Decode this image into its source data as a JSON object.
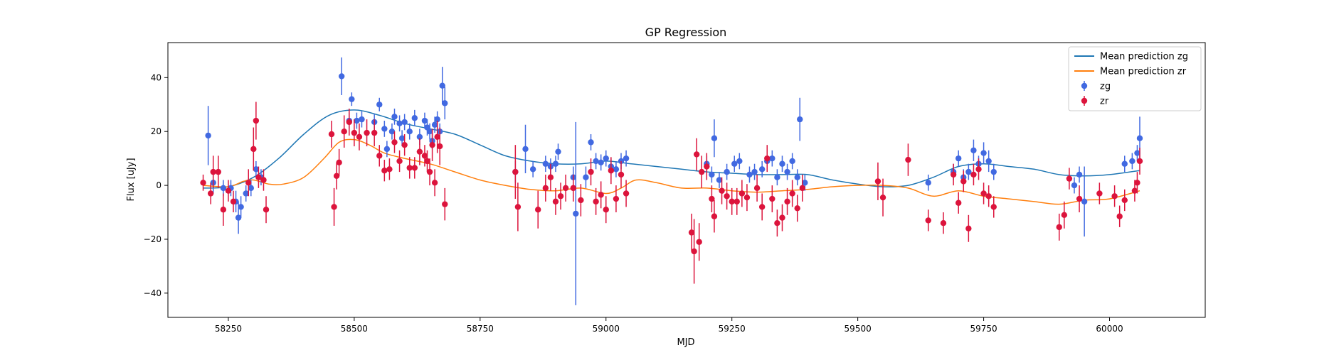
{
  "chart_data": {
    "type": "scatter",
    "title": "GP Regression",
    "xlabel": "MJD",
    "ylabel": "Flux [uJy]",
    "xlim": [
      58130,
      60190
    ],
    "ylim": [
      -49,
      53
    ],
    "xticks": [
      58250,
      58500,
      58750,
      59000,
      59250,
      59500,
      59750,
      60000
    ],
    "yticks": [
      -40,
      -20,
      0,
      20,
      40
    ],
    "grid": false,
    "legend_position": "top-right",
    "legend": [
      {
        "label": "Mean prediction zg",
        "kind": "line",
        "color": "#1f77b4"
      },
      {
        "label": "Mean prediction zr",
        "kind": "line",
        "color": "#ff7f0e"
      },
      {
        "label": "zg",
        "kind": "errorbar",
        "color": "#4169e1"
      },
      {
        "label": "zr",
        "kind": "errorbar",
        "color": "#dc143c"
      }
    ],
    "lines": [
      {
        "name": "Mean prediction zg",
        "color": "#1f77b4",
        "x": [
          58200,
          58250,
          58300,
          58350,
          58400,
          58450,
          58500,
          58550,
          58600,
          58650,
          58700,
          58750,
          58800,
          58850,
          58900,
          58950,
          59000,
          59050,
          59100,
          59150,
          59200,
          59250,
          59300,
          59350,
          59400,
          59450,
          59500,
          59550,
          59600,
          59650,
          59700,
          59750,
          59800,
          59850,
          59900,
          59950,
          60000,
          60060
        ],
        "y": [
          -1,
          -0.5,
          3,
          10,
          19,
          26,
          28,
          26,
          23,
          21,
          19,
          15,
          11,
          9,
          8,
          8,
          9,
          8,
          7,
          6,
          5,
          4.5,
          4,
          4,
          4,
          2,
          0.5,
          -0.5,
          0,
          3,
          7,
          8,
          7,
          6,
          4,
          3.5,
          4,
          5.5
        ]
      },
      {
        "name": "Mean prediction zr",
        "color": "#ff7f0e",
        "x": [
          58200,
          58250,
          58280,
          58300,
          58330,
          58360,
          58400,
          58440,
          58470,
          58500,
          58530,
          58560,
          58600,
          58650,
          58700,
          58750,
          58800,
          58850,
          58900,
          58950,
          59000,
          59030,
          59060,
          59100,
          59150,
          59200,
          59250,
          59300,
          59350,
          59400,
          59450,
          59500,
          59550,
          59600,
          59650,
          59700,
          59750,
          59800,
          59850,
          59900,
          59950,
          60000,
          60060
        ],
        "y": [
          0,
          -0.5,
          1.5,
          2,
          0.5,
          0.5,
          3,
          10,
          16,
          17,
          15,
          12,
          10,
          8,
          5,
          2,
          0,
          -1.5,
          -2,
          -1,
          -3,
          -1,
          2,
          1,
          -1,
          -1,
          -2,
          -2.5,
          -2,
          -1.5,
          -0.5,
          0,
          0,
          -1,
          -4,
          -2,
          -4,
          -5,
          -6,
          -7,
          -5.5,
          -5,
          -2
        ]
      }
    ],
    "series": [
      {
        "name": "zg",
        "color": "#4169e1",
        "points": [
          [
            58210,
            18.5,
            11
          ],
          [
            58220,
            1,
            4
          ],
          [
            58240,
            -1,
            3
          ],
          [
            58255,
            -1,
            3
          ],
          [
            58265,
            -6,
            4
          ],
          [
            58270,
            -12,
            6
          ],
          [
            58275,
            -8,
            4
          ],
          [
            58285,
            -3,
            3
          ],
          [
            58295,
            -1,
            3
          ],
          [
            58305,
            6,
            3
          ],
          [
            58315,
            3,
            3
          ],
          [
            58475,
            40.5,
            7
          ],
          [
            58490,
            24,
            3
          ],
          [
            58495,
            32,
            2.5
          ],
          [
            58505,
            24,
            3
          ],
          [
            58515,
            24.5,
            3
          ],
          [
            58540,
            23.5,
            3
          ],
          [
            58550,
            30,
            2.5
          ],
          [
            58560,
            21,
            3
          ],
          [
            58565,
            13.5,
            3
          ],
          [
            58575,
            20,
            3
          ],
          [
            58580,
            25.5,
            3
          ],
          [
            58590,
            23,
            3
          ],
          [
            58595,
            17.5,
            3
          ],
          [
            58600,
            23.5,
            3
          ],
          [
            58610,
            20,
            3
          ],
          [
            58620,
            25,
            3
          ],
          [
            58630,
            18,
            3
          ],
          [
            58640,
            24,
            3
          ],
          [
            58645,
            21.5,
            3
          ],
          [
            58650,
            20,
            3
          ],
          [
            58655,
            16.5,
            3
          ],
          [
            58660,
            22.5,
            3
          ],
          [
            58665,
            24.5,
            3
          ],
          [
            58670,
            20,
            3
          ],
          [
            58675,
            37,
            7
          ],
          [
            58680,
            30.5,
            6
          ],
          [
            58820,
            5,
            4
          ],
          [
            58840,
            13.5,
            9
          ],
          [
            58855,
            6,
            3
          ],
          [
            58880,
            8,
            3
          ],
          [
            58890,
            7,
            3
          ],
          [
            58900,
            8,
            3
          ],
          [
            58905,
            12.5,
            3
          ],
          [
            58935,
            3,
            4
          ],
          [
            58940,
            -10.5,
            34
          ],
          [
            58960,
            3,
            4
          ],
          [
            58970,
            16,
            3
          ],
          [
            58980,
            9,
            3
          ],
          [
            58990,
            8.5,
            3
          ],
          [
            59000,
            10,
            3
          ],
          [
            59010,
            7,
            3
          ],
          [
            59020,
            6,
            3
          ],
          [
            59030,
            9,
            3
          ],
          [
            59040,
            10,
            3
          ],
          [
            59200,
            8,
            3
          ],
          [
            59210,
            4,
            3
          ],
          [
            59215,
            17.5,
            7
          ],
          [
            59225,
            2,
            3
          ],
          [
            59240,
            5,
            3
          ],
          [
            59255,
            8,
            3
          ],
          [
            59265,
            9,
            3
          ],
          [
            59285,
            4,
            3
          ],
          [
            59295,
            5,
            3
          ],
          [
            59310,
            6,
            3
          ],
          [
            59320,
            9,
            3
          ],
          [
            59330,
            10,
            3
          ],
          [
            59340,
            3,
            3
          ],
          [
            59350,
            8,
            3
          ],
          [
            59360,
            5,
            3
          ],
          [
            59370,
            9,
            3
          ],
          [
            59380,
            3,
            3
          ],
          [
            59385,
            24.5,
            8
          ],
          [
            59395,
            1,
            3
          ],
          [
            59640,
            1,
            3
          ],
          [
            59690,
            5,
            3
          ],
          [
            59700,
            10,
            3
          ],
          [
            59710,
            3,
            3
          ],
          [
            59720,
            5,
            3
          ],
          [
            59730,
            13,
            4
          ],
          [
            59740,
            8,
            3
          ],
          [
            59750,
            12,
            4
          ],
          [
            59760,
            9,
            4
          ],
          [
            59770,
            5,
            3
          ],
          [
            59930,
            0,
            3
          ],
          [
            59940,
            4,
            3
          ],
          [
            59950,
            -6,
            13
          ],
          [
            60030,
            8,
            3
          ],
          [
            60045,
            9,
            3
          ],
          [
            60055,
            12,
            3
          ],
          [
            60060,
            17.5,
            8
          ]
        ]
      },
      {
        "name": "zr",
        "color": "#dc143c",
        "points": [
          [
            58200,
            1,
            3
          ],
          [
            58215,
            -3,
            4
          ],
          [
            58220,
            5,
            6
          ],
          [
            58230,
            5,
            6
          ],
          [
            58240,
            -9,
            6
          ],
          [
            58250,
            -2,
            4
          ],
          [
            58260,
            -6,
            4
          ],
          [
            58290,
            1,
            5
          ],
          [
            58300,
            13.5,
            8
          ],
          [
            58305,
            24,
            7
          ],
          [
            58310,
            3,
            4
          ],
          [
            58320,
            2,
            4
          ],
          [
            58325,
            -9,
            5
          ],
          [
            58455,
            19,
            5
          ],
          [
            58460,
            -8,
            7
          ],
          [
            58465,
            3.5,
            5
          ],
          [
            58470,
            8.5,
            5
          ],
          [
            58480,
            20,
            6
          ],
          [
            58490,
            23.5,
            5
          ],
          [
            58500,
            19.5,
            5
          ],
          [
            58510,
            18,
            5
          ],
          [
            58525,
            19.5,
            5
          ],
          [
            58540,
            19.5,
            5
          ],
          [
            58550,
            11,
            4
          ],
          [
            58560,
            5.5,
            4
          ],
          [
            58570,
            6,
            4
          ],
          [
            58580,
            16,
            4
          ],
          [
            58590,
            9,
            4
          ],
          [
            58600,
            15,
            4
          ],
          [
            58610,
            6.5,
            4
          ],
          [
            58620,
            6.5,
            4
          ],
          [
            58630,
            12.5,
            5
          ],
          [
            58640,
            11,
            4
          ],
          [
            58645,
            9,
            4
          ],
          [
            58650,
            5,
            5
          ],
          [
            58655,
            15,
            6
          ],
          [
            58660,
            1,
            5
          ],
          [
            58665,
            18,
            6
          ],
          [
            58670,
            14.5,
            7
          ],
          [
            58680,
            -7,
            6
          ],
          [
            58820,
            5,
            10
          ],
          [
            58825,
            -8,
            9
          ],
          [
            58865,
            -9,
            7
          ],
          [
            58880,
            -1,
            5
          ],
          [
            58890,
            3,
            5
          ],
          [
            58900,
            -6,
            5
          ],
          [
            58910,
            -4,
            5
          ],
          [
            58920,
            -1,
            5
          ],
          [
            58935,
            -1,
            5
          ],
          [
            58950,
            -5.5,
            6
          ],
          [
            58970,
            5,
            5
          ],
          [
            58980,
            -6,
            5
          ],
          [
            58990,
            -3.5,
            5
          ],
          [
            59000,
            -9,
            5
          ],
          [
            59010,
            5.5,
            5
          ],
          [
            59020,
            -5,
            5
          ],
          [
            59030,
            4,
            5
          ],
          [
            59040,
            -3,
            5
          ],
          [
            59170,
            -17.5,
            7
          ],
          [
            59175,
            -24.5,
            12
          ],
          [
            59180,
            11.5,
            6
          ],
          [
            59185,
            -21,
            7
          ],
          [
            59190,
            5,
            6
          ],
          [
            59200,
            7,
            5
          ],
          [
            59210,
            -5,
            5
          ],
          [
            59215,
            -11.5,
            6
          ],
          [
            59230,
            -2,
            5
          ],
          [
            59240,
            -4,
            5
          ],
          [
            59250,
            -6,
            5
          ],
          [
            59260,
            -6,
            5
          ],
          [
            59270,
            -3,
            5
          ],
          [
            59280,
            -4.5,
            5
          ],
          [
            59300,
            -1,
            5
          ],
          [
            59310,
            -8,
            5
          ],
          [
            59320,
            10,
            5
          ],
          [
            59330,
            -5,
            5
          ],
          [
            59340,
            -14,
            5
          ],
          [
            59350,
            -12,
            5
          ],
          [
            59360,
            -6,
            5
          ],
          [
            59370,
            -3,
            5
          ],
          [
            59380,
            -8.5,
            5
          ],
          [
            59390,
            -1,
            5
          ],
          [
            59540,
            1.5,
            7
          ],
          [
            59550,
            -4.5,
            7
          ],
          [
            59600,
            9.5,
            6
          ],
          [
            59640,
            -13,
            4
          ],
          [
            59670,
            -14,
            4
          ],
          [
            59690,
            4,
            4
          ],
          [
            59700,
            -6.5,
            4
          ],
          [
            59710,
            1.5,
            4
          ],
          [
            59720,
            -16,
            5
          ],
          [
            59730,
            4,
            4
          ],
          [
            59740,
            6,
            4
          ],
          [
            59750,
            -3,
            4
          ],
          [
            59760,
            -4,
            4
          ],
          [
            59770,
            -8,
            4
          ],
          [
            59900,
            -15.5,
            5
          ],
          [
            59910,
            -11,
            5
          ],
          [
            59920,
            2.5,
            4
          ],
          [
            59940,
            -5,
            5
          ],
          [
            59980,
            -3,
            4
          ],
          [
            60010,
            -4,
            4
          ],
          [
            60020,
            -11.5,
            4
          ],
          [
            60030,
            -5.5,
            4
          ],
          [
            60050,
            -2,
            4
          ],
          [
            60055,
            1,
            4
          ],
          [
            60060,
            9,
            5
          ]
        ]
      }
    ]
  }
}
